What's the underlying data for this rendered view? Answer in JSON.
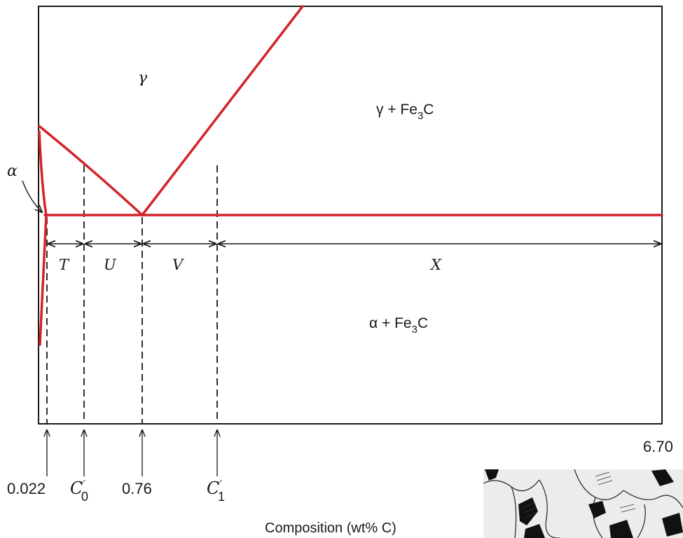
{
  "regions": {
    "gamma": "γ",
    "gamma_fe3c": "γ + Fe",
    "alpha_fe3c": "α  + Fe",
    "fe3c_sub": "3",
    "fe3c_c": "C",
    "alpha": "α"
  },
  "segments": {
    "t": "T",
    "u": "U",
    "v": "V",
    "x": "X"
  },
  "ticks": {
    "solubility": "0.022",
    "c0_main": "C",
    "c0_prime": "′",
    "c0_sub": "0",
    "eutectoid": "0.76",
    "c1_main": "C",
    "c1_prime": "′",
    "c1_sub": "1",
    "max": "6.70"
  },
  "axis": {
    "xlabel": "Composition (wt% C)"
  },
  "colors": {
    "phase_boundary": "#d2232a",
    "frame": "#1a1a1a"
  },
  "micrograph": {
    "icon": "microstructure-image"
  }
}
